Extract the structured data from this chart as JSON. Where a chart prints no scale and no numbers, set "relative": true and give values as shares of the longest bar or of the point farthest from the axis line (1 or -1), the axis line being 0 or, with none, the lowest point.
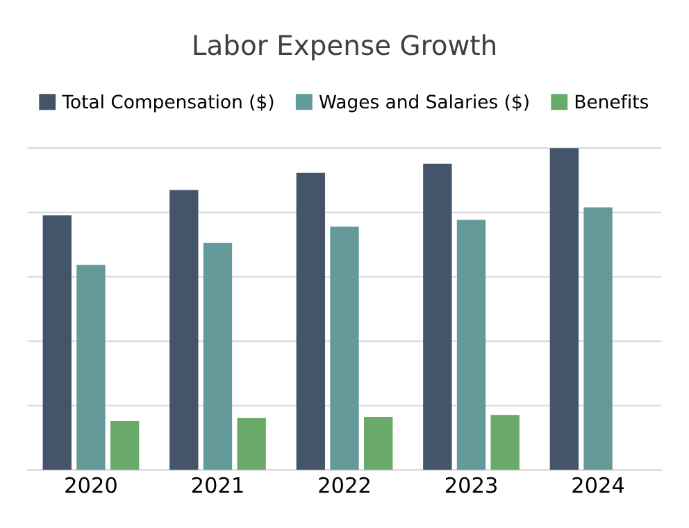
{
  "chart_data": {
    "type": "bar",
    "title": "Labor Expense Growth",
    "relative": true,
    "grid": "y",
    "legend": "top",
    "categories": [
      "2020",
      "2021",
      "2022",
      "2023",
      "2024"
    ],
    "series": [
      {
        "name": "Total Compensation ($)",
        "color": "#44546a",
        "values": [
          0.791,
          0.87,
          0.923,
          0.951,
          1
        ]
      },
      {
        "name": "Wages and Salaries ($)",
        "color": "#659a9a",
        "values": [
          0.637,
          0.705,
          0.756,
          0.777,
          0.816
        ]
      },
      {
        "name": "Benefits",
        "color": "#6aaa68",
        "values": [
          0.152,
          0.161,
          0.165,
          0.171,
          null
        ]
      }
    ]
  }
}
